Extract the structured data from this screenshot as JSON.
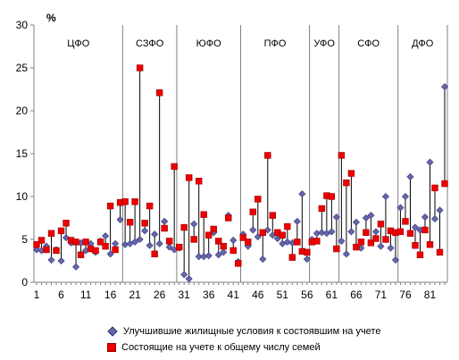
{
  "chart_data": {
    "type": "scatter",
    "unit_label": "%",
    "ylim": [
      0,
      30
    ],
    "yticks": [
      0,
      5,
      10,
      15,
      20,
      25,
      30
    ],
    "xlim": [
      1,
      84
    ],
    "xticks": [
      1,
      6,
      11,
      16,
      21,
      26,
      31,
      36,
      41,
      46,
      51,
      56,
      61,
      66,
      71,
      76,
      81
    ],
    "grid": false,
    "districts": [
      {
        "label": "ЦФО",
        "start": 1,
        "end": 18
      },
      {
        "label": "СЗФО",
        "start": 19,
        "end": 29
      },
      {
        "label": "ЮФО",
        "start": 30,
        "end": 42
      },
      {
        "label": "ПФО",
        "start": 43,
        "end": 56
      },
      {
        "label": "УФО",
        "start": 57,
        "end": 62
      },
      {
        "label": "СФО",
        "start": 63,
        "end": 74
      },
      {
        "label": "ДФО",
        "start": 75,
        "end": 84
      }
    ],
    "x": [
      1,
      2,
      3,
      4,
      5,
      6,
      7,
      8,
      9,
      10,
      11,
      12,
      13,
      14,
      15,
      16,
      17,
      18,
      19,
      20,
      21,
      22,
      23,
      24,
      25,
      26,
      27,
      28,
      29,
      30,
      31,
      32,
      33,
      34,
      35,
      36,
      37,
      38,
      39,
      40,
      41,
      42,
      43,
      44,
      45,
      46,
      47,
      48,
      49,
      50,
      51,
      52,
      53,
      54,
      55,
      56,
      57,
      58,
      59,
      60,
      61,
      62,
      63,
      64,
      65,
      66,
      67,
      68,
      69,
      70,
      71,
      72,
      73,
      74,
      75,
      76,
      77,
      78,
      79,
      80,
      81,
      82,
      83,
      84
    ],
    "series": [
      {
        "name": "Улучшившие жилищные условия к состоявшим на учете",
        "marker": "diamond",
        "color": "#6666aa",
        "values": [
          3.8,
          3.7,
          4.2,
          2.6,
          3.8,
          2.5,
          5.2,
          4.6,
          1.8,
          4.6,
          3.7,
          4.5,
          3.5,
          4.8,
          5.4,
          3.3,
          4.5,
          7.3,
          4.4,
          4.5,
          4.7,
          5.0,
          6.0,
          4.3,
          5.6,
          4.5,
          7.1,
          4.1,
          3.8,
          4.0,
          0.9,
          0.4,
          6.8,
          3.0,
          3.0,
          3.1,
          5.8,
          3.2,
          3.5,
          7.8,
          4.9,
          2.4,
          5.6,
          4.2,
          6.1,
          5.3,
          2.7,
          6.1,
          5.5,
          5.1,
          4.5,
          4.7,
          4.6,
          7.1,
          10.3,
          2.7,
          5.0,
          5.7,
          5.8,
          5.7,
          5.9,
          7.6,
          4.8,
          3.3,
          5.9,
          7.0,
          4.0,
          7.5,
          7.8,
          5.9,
          4.2,
          10.0,
          4.0,
          2.6,
          8.7,
          10.0,
          12.3,
          6.4,
          6.1,
          7.6,
          14.0,
          7.4,
          8.4,
          22.8
        ]
      },
      {
        "name": "Состоящие на учете к общему числу семей",
        "marker": "square",
        "color": "#ee0000",
        "values": [
          4.4,
          4.9,
          3.8,
          5.7,
          3.7,
          6.0,
          6.9,
          4.9,
          4.7,
          3.2,
          4.7,
          3.9,
          3.7,
          4.7,
          4.2,
          8.9,
          3.8,
          9.3,
          9.4,
          7.0,
          9.4,
          25.0,
          6.9,
          8.9,
          3.3,
          22.1,
          6.3,
          4.8,
          13.5,
          4.1,
          6.4,
          12.2,
          5.0,
          11.8,
          7.9,
          5.5,
          6.2,
          4.8,
          4.2,
          7.5,
          3.7,
          2.2,
          5.2,
          4.7,
          8.2,
          9.7,
          5.8,
          14.8,
          7.8,
          5.8,
          5.5,
          6.5,
          2.9,
          4.7,
          3.6,
          3.5,
          4.7,
          4.8,
          8.6,
          10.1,
          10.0,
          3.9,
          14.8,
          11.6,
          12.7,
          4.1,
          4.7,
          5.8,
          4.6,
          5.1,
          6.8,
          5.0,
          6.0,
          5.8,
          5.9,
          7.1,
          5.7,
          4.3,
          3.2,
          6.1,
          4.4,
          11.0,
          3.5,
          11.5
        ]
      }
    ]
  }
}
